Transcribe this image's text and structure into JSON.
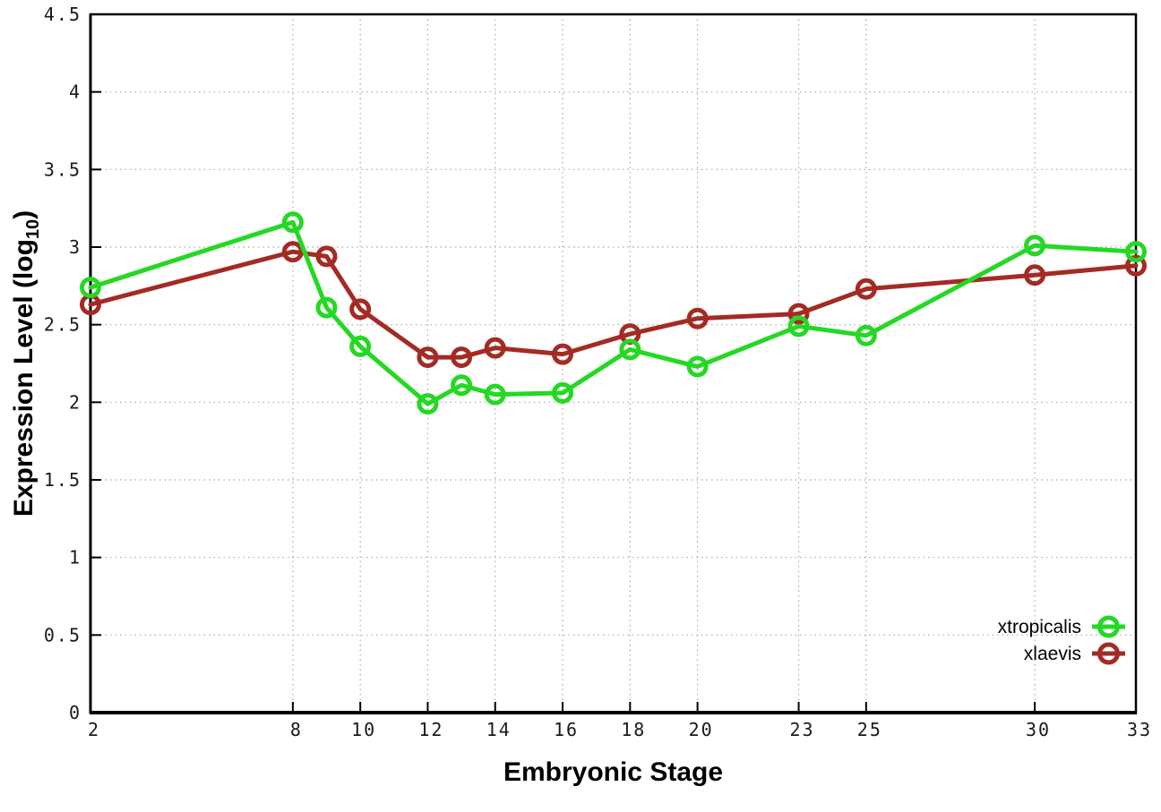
{
  "window": {
    "background": "#ffffff"
  },
  "chart_data": {
    "type": "line",
    "title": "",
    "xlabel": "Embryonic Stage",
    "ylabel": "Expression Level (log10)",
    "ylabel_parts": {
      "main": "Expression Level (log",
      "sub": "10",
      "end": ")"
    },
    "xlim": [
      2,
      33
    ],
    "ylim": [
      0,
      4.5
    ],
    "xticks": [
      2,
      8,
      10,
      12,
      14,
      16,
      18,
      20,
      23,
      25,
      30,
      33
    ],
    "yticks": [
      0,
      0.5,
      1,
      1.5,
      2,
      2.5,
      3,
      3.5,
      4,
      4.5
    ],
    "ytick_labels": [
      "0",
      "0.5",
      "1",
      "1.5",
      "2",
      "2.5",
      "3",
      "3.5",
      "4",
      "4.5"
    ],
    "grid": true,
    "legend_position": "bottom-right",
    "x": [
      2,
      8,
      9,
      10,
      12,
      13,
      14,
      16,
      18,
      20,
      23,
      25,
      30,
      33
    ],
    "series": [
      {
        "name": "xtropicalis",
        "color": "#24d824",
        "values": [
          2.74,
          3.16,
          2.61,
          2.36,
          1.99,
          2.11,
          2.05,
          2.06,
          2.34,
          2.23,
          2.49,
          2.43,
          3.01,
          2.97
        ]
      },
      {
        "name": "xlaevis",
        "color": "#a32b23",
        "values": [
          2.63,
          2.97,
          2.94,
          2.6,
          2.29,
          2.29,
          2.35,
          2.31,
          2.44,
          2.54,
          2.57,
          2.73,
          2.82,
          2.88
        ]
      }
    ],
    "style": {
      "grid_color": "#a8a8a8",
      "border_color": "#000000",
      "tick_color": "#000000",
      "line_width": 5,
      "marker_radius": 9.5,
      "marker_stroke_width": 5,
      "legend_marker_radius": 10
    }
  }
}
